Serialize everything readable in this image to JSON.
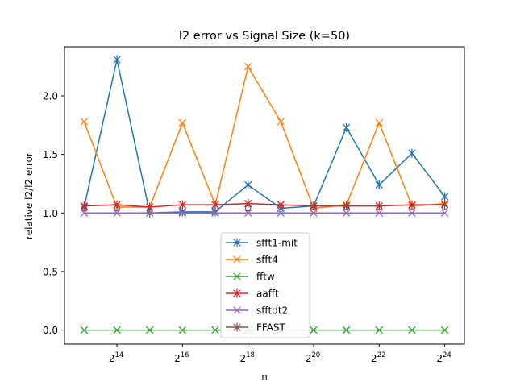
{
  "chart_data": {
    "type": "line",
    "title": "l2 error vs Signal Size (k=50)",
    "xlabel": "n",
    "ylabel": "relative l2/l2 error",
    "x_scale": "log2",
    "x_exponents": [
      13,
      14,
      15,
      16,
      17,
      18,
      19,
      20,
      21,
      22,
      23,
      24
    ],
    "xlim_exponent": [
      12.4,
      24.6
    ],
    "xticks": [
      {
        "exponent": 14,
        "base": "2",
        "exp": "14"
      },
      {
        "exponent": 16,
        "base": "2",
        "exp": "16"
      },
      {
        "exponent": 18,
        "base": "2",
        "exp": "18"
      },
      {
        "exponent": 20,
        "base": "2",
        "exp": "20"
      },
      {
        "exponent": 22,
        "base": "2",
        "exp": "22"
      },
      {
        "exponent": 24,
        "base": "2",
        "exp": "24"
      }
    ],
    "ylim": [
      -0.12,
      2.42
    ],
    "yticks": [
      {
        "value": 0.0,
        "label": "0.0"
      },
      {
        "value": 0.5,
        "label": "0.5"
      },
      {
        "value": 1.0,
        "label": "1.0"
      },
      {
        "value": 1.5,
        "label": "1.5"
      },
      {
        "value": 2.0,
        "label": "2.0"
      }
    ],
    "grid": false,
    "legend_position": "lower-center",
    "hollow_markers": {
      "color": "#555555",
      "points": [
        {
          "x_exponent": 13,
          "y": 1.04
        },
        {
          "x_exponent": 14,
          "y": 1.04
        },
        {
          "x_exponent": 15,
          "y": 1.01
        },
        {
          "x_exponent": 16,
          "y": 1.04
        },
        {
          "x_exponent": 17,
          "y": 1.04
        },
        {
          "x_exponent": 18,
          "y": 1.04
        },
        {
          "x_exponent": 19,
          "y": 1.05
        },
        {
          "x_exponent": 20,
          "y": 1.05
        },
        {
          "x_exponent": 21,
          "y": 1.05
        },
        {
          "x_exponent": 22,
          "y": 1.05
        },
        {
          "x_exponent": 23,
          "y": 1.05
        },
        {
          "x_exponent": 24,
          "y": 1.05
        }
      ]
    },
    "series": [
      {
        "name": "sfft1-mit",
        "color": "#1f77b4",
        "marker": "star",
        "x_exponents": [
          13,
          14,
          15,
          16,
          17,
          18,
          19,
          20,
          21,
          22,
          23,
          24
        ],
        "values": [
          1.05,
          2.31,
          1.0,
          1.01,
          1.01,
          1.24,
          1.04,
          1.06,
          1.73,
          1.24,
          1.51,
          1.14
        ]
      },
      {
        "name": "sfft4",
        "color": "#ff7f0e",
        "marker": "x",
        "x_exponents": [
          13,
          14,
          15,
          16,
          17,
          18,
          19,
          20,
          21,
          22,
          23,
          24
        ],
        "values": [
          1.78,
          1.05,
          1.05,
          1.77,
          1.07,
          2.25,
          1.78,
          1.04,
          1.07,
          1.77,
          1.06,
          1.08
        ]
      },
      {
        "name": "fftw",
        "color": "#2ca02c",
        "marker": "x",
        "x_exponents": [
          13,
          14,
          15,
          16,
          17,
          18,
          19,
          20,
          21,
          22,
          23,
          24
        ],
        "values": [
          0,
          0,
          0,
          0,
          0,
          0,
          0,
          0,
          0,
          0,
          0,
          0
        ]
      },
      {
        "name": "aafft",
        "color": "#d62728",
        "marker": "star",
        "x_exponents": [
          13,
          14,
          15,
          16,
          17,
          18,
          19,
          20,
          21,
          22,
          23,
          24
        ],
        "values": [
          1.06,
          1.07,
          1.05,
          1.07,
          1.07,
          1.08,
          1.07,
          1.06,
          1.06,
          1.06,
          1.07,
          1.07
        ]
      },
      {
        "name": "sfftdt2",
        "color": "#9467bd",
        "marker": "x",
        "x_exponents": [
          13,
          14,
          15,
          16,
          17,
          18,
          19,
          20,
          21,
          22,
          23,
          24
        ],
        "values": [
          1.0,
          1.0,
          1.0,
          1.0,
          1.0,
          1.0,
          1.0,
          1.0,
          1.0,
          1.0,
          1.0,
          1.0
        ]
      },
      {
        "name": "FFAST",
        "color": "#8c564b",
        "marker": "star",
        "x_exponents": [],
        "values": []
      }
    ]
  }
}
